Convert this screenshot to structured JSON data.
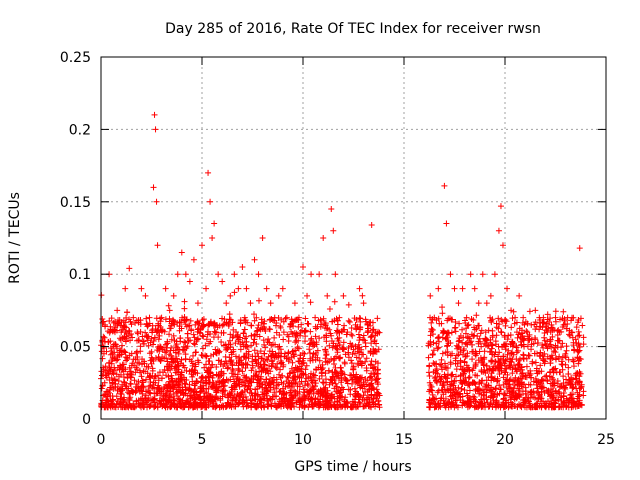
{
  "chart_data": {
    "type": "scatter",
    "title": "Day 285 of 2016, Rate Of TEC Index for receiver rwsn",
    "xlabel": "GPS time / hours",
    "ylabel": "ROTI / TECUs",
    "xlim": [
      0,
      25
    ],
    "ylim": [
      0,
      0.25
    ],
    "x_ticks": [
      0,
      5,
      10,
      15,
      20,
      25
    ],
    "y_ticks": [
      0,
      0.05,
      0.1,
      0.15,
      0.2,
      0.25
    ],
    "x_tick_labels": [
      "0",
      "5",
      "10",
      "15",
      "20",
      "25"
    ],
    "y_tick_labels": [
      "0",
      "0.05",
      "0.1",
      "0.15",
      "0.2",
      "0.25"
    ],
    "grid": true,
    "marker": "+",
    "marker_color": "#ff0000",
    "data_gap_hours": [
      13.8,
      16.2
    ],
    "series": [
      {
        "name": "ROTI",
        "x": [
          0.05,
          0.2,
          0.4,
          0.6,
          0.8,
          1.0,
          1.2,
          1.4,
          1.6,
          1.8,
          2.0,
          2.2,
          2.4,
          2.6,
          2.65,
          2.7,
          2.75,
          2.8,
          3.0,
          3.2,
          3.4,
          3.6,
          3.8,
          4.0,
          4.2,
          4.4,
          4.6,
          4.8,
          5.0,
          5.2,
          5.3,
          5.4,
          5.5,
          5.6,
          5.8,
          6.0,
          6.2,
          6.4,
          6.6,
          6.8,
          7.0,
          7.2,
          7.4,
          7.6,
          7.8,
          8.0,
          8.2,
          8.4,
          8.6,
          8.8,
          9.0,
          9.2,
          9.4,
          9.6,
          9.8,
          10.0,
          10.2,
          10.4,
          10.6,
          10.8,
          11.0,
          11.2,
          11.4,
          11.5,
          11.6,
          11.8,
          12.0,
          12.2,
          12.4,
          12.6,
          12.8,
          13.0,
          13.2,
          13.4,
          13.6,
          16.3,
          16.5,
          16.7,
          16.9,
          17.0,
          17.1,
          17.3,
          17.5,
          17.7,
          17.9,
          18.1,
          18.3,
          18.5,
          18.7,
          18.9,
          19.1,
          19.3,
          19.5,
          19.7,
          19.8,
          19.9,
          20.1,
          20.3,
          20.5,
          20.7,
          20.9,
          21.1,
          21.3,
          21.5,
          21.7,
          21.9,
          22.1,
          22.3,
          22.5,
          22.7,
          22.9,
          23.1,
          23.3,
          23.5,
          23.7
        ],
        "y": [
          0.03,
          0.065,
          0.1,
          0.05,
          0.075,
          0.06,
          0.09,
          0.104,
          0.07,
          0.06,
          0.09,
          0.085,
          0.07,
          0.16,
          0.21,
          0.2,
          0.15,
          0.12,
          0.07,
          0.09,
          0.075,
          0.085,
          0.1,
          0.115,
          0.1,
          0.095,
          0.11,
          0.08,
          0.12,
          0.09,
          0.17,
          0.15,
          0.125,
          0.135,
          0.1,
          0.095,
          0.08,
          0.085,
          0.1,
          0.09,
          0.105,
          0.09,
          0.08,
          0.11,
          0.1,
          0.125,
          0.09,
          0.08,
          0.07,
          0.085,
          0.09,
          0.07,
          0.065,
          0.08,
          0.07,
          0.105,
          0.085,
          0.1,
          0.07,
          0.1,
          0.125,
          0.085,
          0.145,
          0.13,
          0.1,
          0.07,
          0.085,
          0.06,
          0.05,
          0.065,
          0.09,
          0.08,
          0.065,
          0.134,
          0.06,
          0.085,
          0.07,
          0.09,
          0.073,
          0.161,
          0.135,
          0.1,
          0.09,
          0.08,
          0.09,
          0.07,
          0.1,
          0.09,
          0.08,
          0.1,
          0.08,
          0.085,
          0.1,
          0.13,
          0.147,
          0.12,
          0.09,
          0.075,
          0.07,
          0.085,
          0.07,
          0.06,
          0.065,
          0.075,
          0.07,
          0.07,
          0.06,
          0.065,
          0.07,
          0.06,
          0.065,
          0.07,
          0.06,
          0.055,
          0.118
        ]
      }
    ]
  }
}
